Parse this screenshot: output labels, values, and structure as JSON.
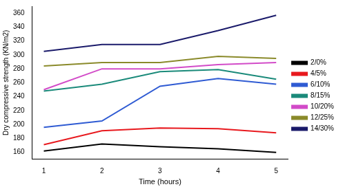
{
  "chart_data": {
    "type": "line",
    "x_label": "Time (hours)",
    "y_label": "Dry compressive strength (KN/m2)",
    "x": [
      1,
      2,
      3,
      4,
      5
    ],
    "xlim": [
      0.8,
      5.2
    ],
    "xticks": [
      1,
      2,
      3,
      4,
      5
    ],
    "ylim": [
      150,
      370
    ],
    "yticks": [
      160,
      180,
      200,
      220,
      240,
      260,
      280,
      300,
      320,
      340,
      360
    ],
    "grid": false,
    "legend": "right",
    "series": [
      {
        "name": "2/0%",
        "color": "#000000",
        "values": [
          162,
          172,
          168,
          165,
          160
        ]
      },
      {
        "name": "4/5%",
        "color": "#e8191e",
        "values": [
          171,
          191,
          195,
          194,
          188
        ]
      },
      {
        "name": "6/10%",
        "color": "#2f5bd3",
        "values": [
          196,
          205,
          255,
          266,
          258
        ]
      },
      {
        "name": "8/15%",
        "color": "#1a8a7a",
        "values": [
          248,
          258,
          276,
          279,
          265
        ]
      },
      {
        "name": "10/20%",
        "color": "#d24bc8",
        "values": [
          250,
          280,
          280,
          286,
          289
        ]
      },
      {
        "name": "12/25%",
        "color": "#8a8a2a",
        "values": [
          284,
          289,
          289,
          298,
          295
        ]
      },
      {
        "name": "14/30%",
        "color": "#1a1a6a",
        "values": [
          305,
          315,
          315,
          335,
          357
        ]
      }
    ]
  }
}
